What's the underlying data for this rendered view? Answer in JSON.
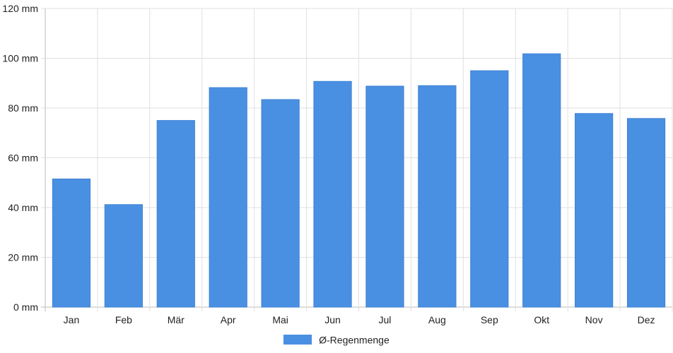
{
  "chart_data": {
    "type": "bar",
    "categories": [
      "Jan",
      "Feb",
      "Mär",
      "Apr",
      "Mai",
      "Jun",
      "Jul",
      "Aug",
      "Sep",
      "Okt",
      "Nov",
      "Dez"
    ],
    "series": [
      {
        "name": "Ø-Regenmenge",
        "values": [
          51.5,
          41.2,
          75.0,
          88.2,
          83.4,
          90.7,
          88.8,
          89.0,
          95.0,
          101.8,
          77.8,
          75.8
        ],
        "color": "#4a90e2"
      }
    ],
    "y_unit": "mm",
    "y_ticks": [
      "0 mm",
      "20 mm",
      "40 mm",
      "60 mm",
      "80 mm",
      "100 mm",
      "120 mm"
    ],
    "ylim": [
      0,
      120
    ],
    "grid": true,
    "legend_position": "bottom"
  }
}
